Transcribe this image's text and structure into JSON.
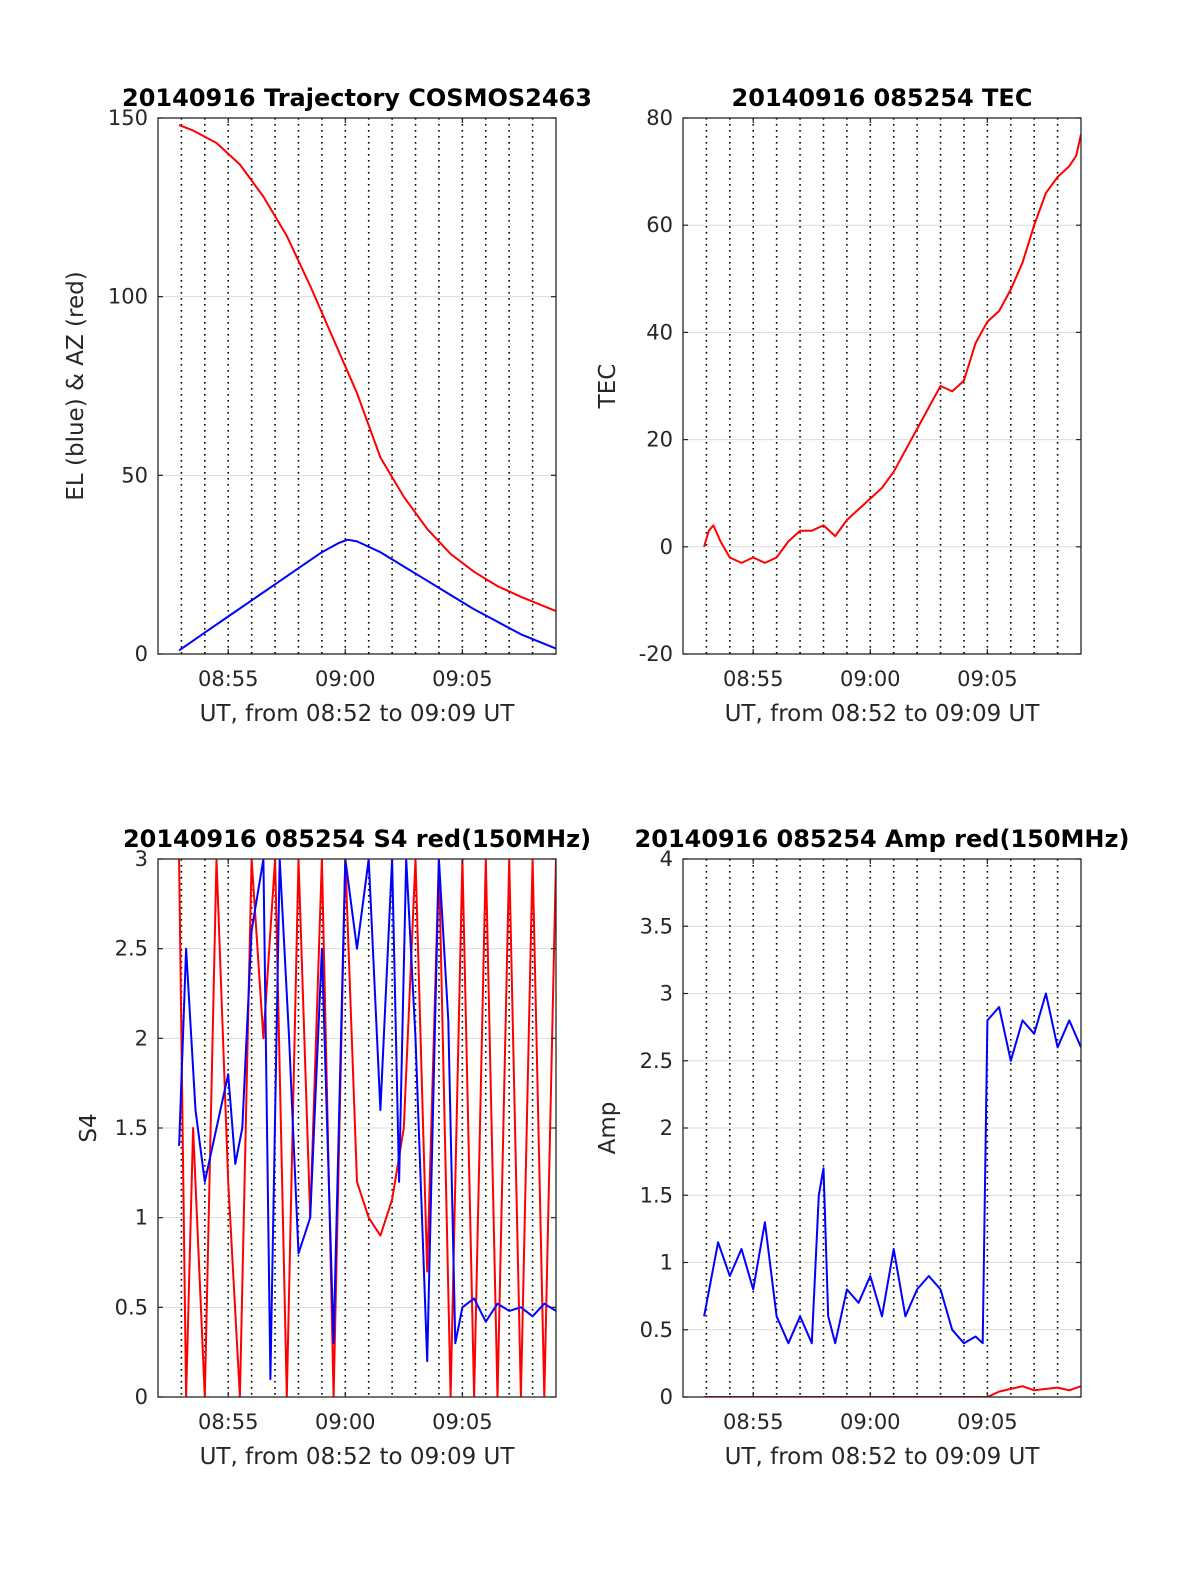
{
  "figure": {
    "background": "#ffffff",
    "colors": {
      "red": "#ff0000",
      "blue": "#0000ff",
      "grid": "#dcdcdc",
      "vgrid": "#000000",
      "axes": "#262626"
    }
  },
  "chart_data": [
    {
      "id": "trajectory",
      "type": "line",
      "title": "20140916 Trajectory COSMOS2463",
      "xlabel": "UT, from 08:52 to 09:09 UT",
      "ylabel": "EL (blue) & AZ (red)",
      "xlim": [
        0,
        17
      ],
      "ylim": [
        0,
        150
      ],
      "xticks": [
        3,
        8,
        13
      ],
      "xticklabels": [
        "08:55",
        "09:00",
        "09:05"
      ],
      "yticks": [
        0,
        50,
        100,
        150
      ],
      "yticklabels": [
        "0",
        "50",
        "100",
        "150"
      ],
      "grid": true,
      "series": [
        {
          "color": "#ff0000",
          "x": [
            0.9,
            1.5,
            2.5,
            3.5,
            4.5,
            5.5,
            6.5,
            7.5,
            8.5,
            9.0,
            9.5,
            10.5,
            11.5,
            12.5,
            13.5,
            14.5,
            15.5,
            17.0
          ],
          "y": [
            148,
            146.5,
            143,
            137,
            128,
            117,
            103,
            88,
            73,
            64,
            55,
            44,
            35,
            28,
            23,
            19,
            16,
            12
          ]
        },
        {
          "color": "#0000ff",
          "x": [
            0.9,
            2,
            3,
            4,
            5,
            6,
            7,
            7.7,
            8.1,
            8.5,
            9.5,
            10.5,
            11.5,
            12.5,
            13.5,
            14.5,
            15.5,
            17.0
          ],
          "y": [
            1,
            6,
            10.5,
            15,
            19.5,
            24,
            28.5,
            31,
            32,
            31.5,
            28.5,
            24.5,
            20.5,
            16.5,
            12.5,
            9,
            5.5,
            1.5
          ]
        }
      ]
    },
    {
      "id": "tec",
      "type": "line",
      "title": "20140916 085254 TEC",
      "xlabel": "UT, from 08:52 to 09:09 UT",
      "ylabel": "TEC",
      "xlim": [
        0,
        17
      ],
      "ylim": [
        -20,
        80
      ],
      "xticks": [
        3,
        8,
        13
      ],
      "xticklabels": [
        "08:55",
        "09:00",
        "09:05"
      ],
      "yticks": [
        -20,
        0,
        20,
        40,
        60,
        80
      ],
      "yticklabels": [
        "-20",
        "0",
        "20",
        "40",
        "60",
        "80"
      ],
      "grid": true,
      "series": [
        {
          "color": "#ff0000",
          "x": [
            0.9,
            1.1,
            1.3,
            1.6,
            2.0,
            2.5,
            3.0,
            3.5,
            4.0,
            4.5,
            5.0,
            5.5,
            6.0,
            6.5,
            7.0,
            7.5,
            8.0,
            8.5,
            9.0,
            9.5,
            10.0,
            10.5,
            11.0,
            11.5,
            12.0,
            12.5,
            13.0,
            13.5,
            14.0,
            14.5,
            15.0,
            15.5,
            16.0,
            16.5,
            16.8,
            17.0
          ],
          "y": [
            0,
            3,
            4,
            1,
            -2,
            -3,
            -2,
            -3,
            -2,
            1,
            3,
            3,
            4,
            2,
            5,
            7,
            9,
            11,
            14,
            18,
            22,
            26,
            30,
            29,
            31,
            38,
            42,
            44,
            48,
            53,
            60,
            66,
            69,
            71,
            73,
            77
          ]
        }
      ]
    },
    {
      "id": "s4",
      "type": "line",
      "title": "20140916 085254 S4 red(150MHz)",
      "xlabel": "UT, from 08:52 to 09:09 UT",
      "ylabel": "S4",
      "xlim": [
        0,
        17
      ],
      "ylim": [
        0,
        3
      ],
      "xticks": [
        3,
        8,
        13
      ],
      "xticklabels": [
        "08:55",
        "09:00",
        "09:05"
      ],
      "yticks": [
        0,
        0.5,
        1,
        1.5,
        2,
        2.5,
        3
      ],
      "yticklabels": [
        "0",
        "0.5",
        "1",
        "1.5",
        "2",
        "2.5",
        "3"
      ],
      "grid": true,
      "series": [
        {
          "color": "#ff0000",
          "x": [
            0.9,
            1.2,
            1.5,
            2.0,
            2.5,
            3.0,
            3.5,
            4.0,
            4.5,
            5.0,
            5.5,
            6.0,
            6.5,
            7.0,
            7.5,
            8.0,
            8.5,
            9.0,
            9.5,
            10.0,
            10.5,
            11.0,
            11.5,
            12.0,
            12.5,
            13.0,
            13.5,
            14.0,
            14.5,
            15.0,
            15.5,
            16.0,
            16.5,
            17.0
          ],
          "y": [
            3,
            0,
            1.5,
            0,
            3,
            1.2,
            0,
            3,
            2,
            3,
            0,
            3,
            1.0,
            3,
            0,
            3,
            1.2,
            1.0,
            0.9,
            1.1,
            1.5,
            3,
            0.7,
            3,
            0,
            3,
            0,
            3,
            0,
            3,
            0,
            3,
            0,
            3
          ]
        },
        {
          "color": "#0000ff",
          "x": [
            0.9,
            1.2,
            1.6,
            2.0,
            2.5,
            3.0,
            3.3,
            3.6,
            4.0,
            4.5,
            4.8,
            5.2,
            5.6,
            6.0,
            6.5,
            7.0,
            7.5,
            8.0,
            8.5,
            9.0,
            9.5,
            10.0,
            10.3,
            10.6,
            11.0,
            11.5,
            12.0,
            12.4,
            12.7,
            13.0,
            13.5,
            14.0,
            14.5,
            15.0,
            15.5,
            16.0,
            16.5,
            17.0
          ],
          "y": [
            1.4,
            2.5,
            1.6,
            1.2,
            1.5,
            1.8,
            1.3,
            1.5,
            2.6,
            3,
            0.1,
            3,
            2.0,
            0.8,
            1.0,
            2.5,
            0.3,
            3,
            2.5,
            3,
            1.6,
            3,
            1.2,
            3,
            2.0,
            0.2,
            3,
            2.1,
            0.3,
            0.5,
            0.55,
            0.42,
            0.52,
            0.48,
            0.5,
            0.45,
            0.52,
            0.48
          ]
        }
      ]
    },
    {
      "id": "amp",
      "type": "line",
      "title": "20140916 085254 Amp red(150MHz)",
      "xlabel": "UT, from 08:52 to 09:09 UT",
      "ylabel": "Amp",
      "xlim": [
        0,
        17
      ],
      "ylim": [
        0,
        4
      ],
      "xticks": [
        3,
        8,
        13
      ],
      "xticklabels": [
        "08:55",
        "09:00",
        "09:05"
      ],
      "yticks": [
        0,
        0.5,
        1,
        1.5,
        2,
        2.5,
        3,
        3.5,
        4
      ],
      "yticklabels": [
        "0",
        "0.5",
        "1",
        "1.5",
        "2",
        "2.5",
        "3",
        "3.5",
        "4"
      ],
      "grid": true,
      "series": [
        {
          "color": "#ff0000",
          "x": [
            0.9,
            13.0,
            13.5,
            14.0,
            14.5,
            15.0,
            15.5,
            16.0,
            16.5,
            17.0
          ],
          "y": [
            0,
            0,
            0.04,
            0.06,
            0.08,
            0.05,
            0.06,
            0.07,
            0.05,
            0.08
          ]
        },
        {
          "color": "#0000ff",
          "x": [
            0.9,
            1.5,
            2.0,
            2.5,
            3.0,
            3.5,
            4.0,
            4.5,
            5.0,
            5.5,
            5.8,
            6.0,
            6.2,
            6.5,
            7.0,
            7.5,
            8.0,
            8.5,
            9.0,
            9.5,
            10.0,
            10.5,
            11.0,
            11.5,
            12.0,
            12.5,
            12.8,
            13.0,
            13.5,
            14.0,
            14.5,
            15.0,
            15.5,
            16.0,
            16.5,
            17.0
          ],
          "y": [
            0.6,
            1.15,
            0.9,
            1.1,
            0.8,
            1.3,
            0.6,
            0.4,
            0.6,
            0.4,
            1.5,
            1.7,
            0.6,
            0.4,
            0.8,
            0.7,
            0.9,
            0.6,
            1.1,
            0.6,
            0.8,
            0.9,
            0.8,
            0.5,
            0.4,
            0.45,
            0.4,
            2.8,
            2.9,
            2.5,
            2.8,
            2.7,
            3.0,
            2.6,
            2.8,
            2.6
          ]
        }
      ]
    }
  ]
}
